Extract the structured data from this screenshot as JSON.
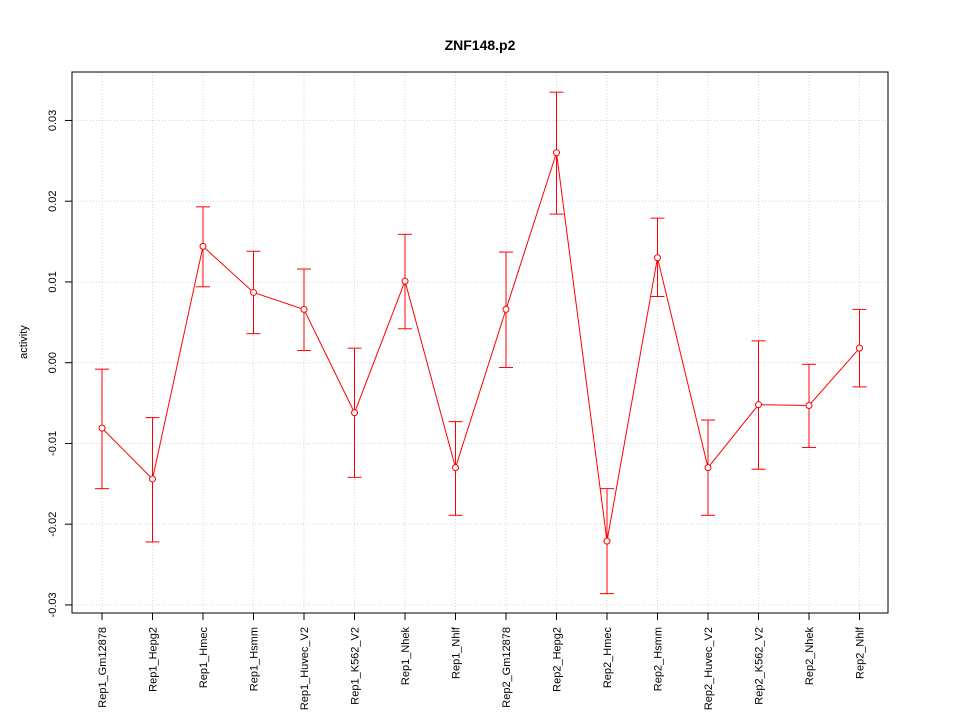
{
  "chart_data": {
    "type": "line",
    "title": "ZNF148.p2",
    "xlabel": "",
    "ylabel": "activity",
    "ylim": [
      -0.031,
      0.036
    ],
    "yticks": [
      -0.03,
      -0.02,
      -0.01,
      0.0,
      0.01,
      0.02,
      0.03
    ],
    "ytick_labels": [
      "-0.03",
      "-0.02",
      "-0.01",
      "0.00",
      "0.01",
      "0.02",
      "0.03"
    ],
    "grid": true,
    "categories": [
      "Rep1_Gm12878",
      "Rep1_Hepg2",
      "Rep1_Hmec",
      "Rep1_Hsmm",
      "Rep1_Huvec_V2",
      "Rep1_K562_V2",
      "Rep1_Nhek",
      "Rep1_Nhlf",
      "Rep2_Gm12878",
      "Rep2_Hepg2",
      "Rep2_Hmec",
      "Rep2_Hsmm",
      "Rep2_Huvec_V2",
      "Rep2_K562_V2",
      "Rep2_Nhek",
      "Rep2_Nhlf"
    ],
    "series": [
      {
        "name": "activity",
        "color": "#ff0000",
        "values": [
          -0.0081,
          -0.0144,
          0.0144,
          0.0087,
          0.0066,
          -0.0062,
          0.0101,
          -0.013,
          0.0066,
          0.026,
          -0.0221,
          0.013,
          -0.013,
          -0.0052,
          -0.0053,
          0.0018
        ],
        "lower": [
          -0.0156,
          -0.0222,
          0.0094,
          0.0036,
          0.0015,
          -0.0142,
          0.0042,
          -0.0189,
          -0.0006,
          0.0184,
          -0.0286,
          0.0082,
          -0.0189,
          -0.0132,
          -0.0105,
          -0.003
        ],
        "upper": [
          -0.0008,
          -0.0068,
          0.0193,
          0.0138,
          0.0116,
          0.0018,
          0.0159,
          -0.0073,
          0.0137,
          0.0335,
          -0.0156,
          0.0179,
          -0.0071,
          0.0027,
          -0.0002,
          0.0066
        ]
      }
    ]
  }
}
